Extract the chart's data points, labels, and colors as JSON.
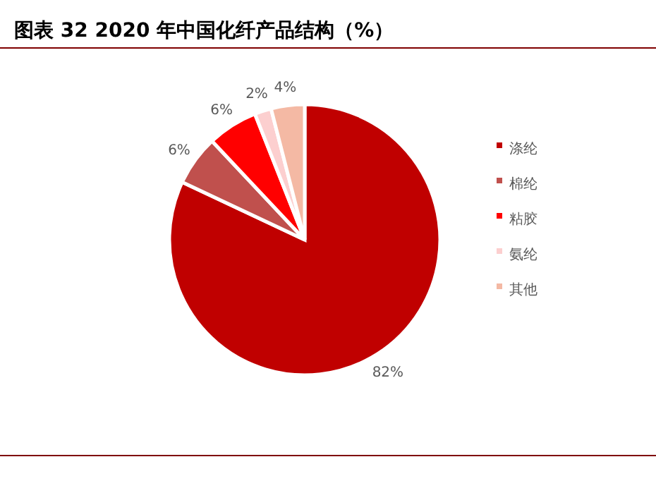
{
  "chart_data": {
    "type": "pie",
    "title": "图表 32 2020 年中国化纤产品结构（%）",
    "categories": [
      "涤纶",
      "棉纶",
      "粘胶",
      "氨纶",
      "其他"
    ],
    "values": [
      82,
      6,
      6,
      2,
      4
    ],
    "colors": [
      "#c00000",
      "#c0504d",
      "#ff0000",
      "#fccfcf",
      "#f4b9a4"
    ],
    "value_labels": [
      "82%",
      "6%",
      "6%",
      "2%",
      "4%"
    ],
    "legend": "right"
  }
}
